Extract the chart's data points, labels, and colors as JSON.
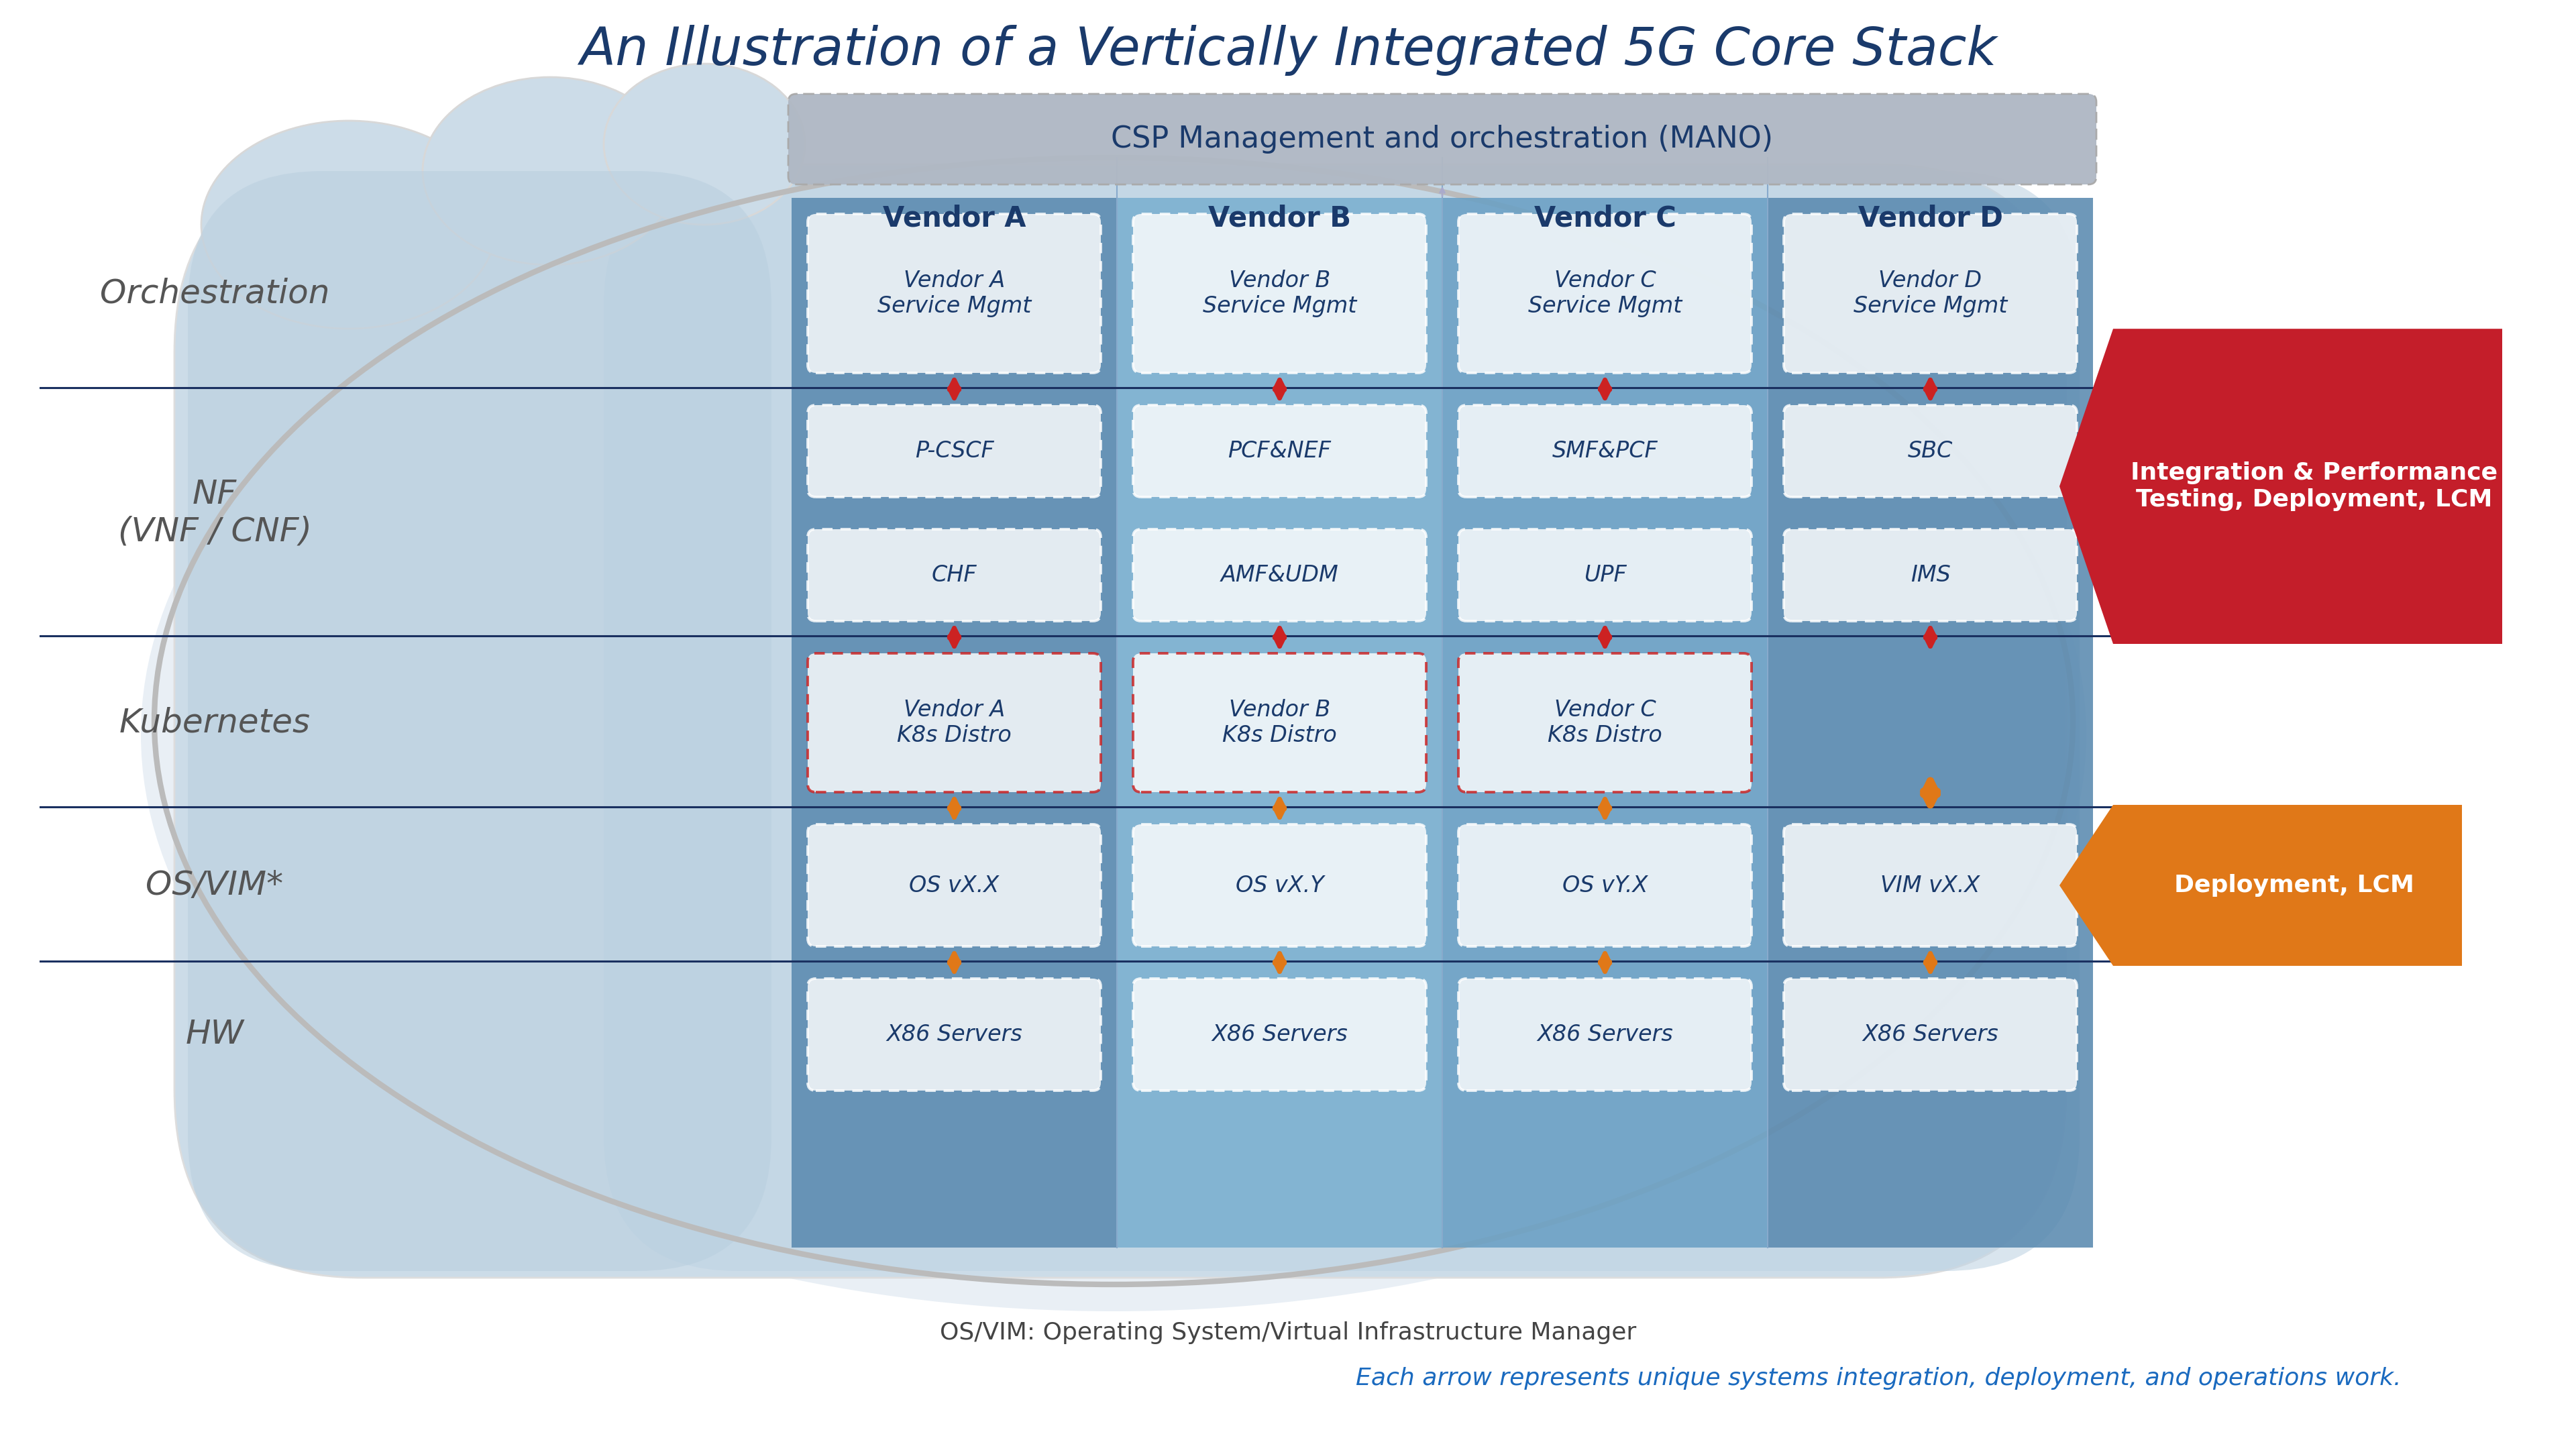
{
  "title": "An Illustration of a Vertically Integrated 5G Core Stack",
  "title_color": "#1a3a6b",
  "title_fontsize": 56,
  "background_color": "#ffffff",
  "mano_color": "#b0b8c4",
  "mano_edge_color": "#aaaaaa",
  "vendor_col_colors": [
    "#5a8ab0",
    "#7ab0d0",
    "#6aa0c4",
    "#5a8ab0"
  ],
  "vendor_names": [
    "Vendor A",
    "Vendor B",
    "Vendor C",
    "Vendor D"
  ],
  "row_label_fontsize": 36,
  "row_label_color": "#555555",
  "vendor_label_color": "#1a3a6b",
  "vendor_label_fontsize": 30,
  "cell_text_color": "#1a3a6b",
  "cell_text_fontsize": 24,
  "cells": {
    "Vendor A": {
      "orchestration": "Vendor A\nService Mgmt",
      "nf1": "P-CSCF",
      "nf2": "CHF",
      "kubernetes": "Vendor A\nK8s Distro",
      "os": "OS vX.X",
      "hw": "X86 Servers"
    },
    "Vendor B": {
      "orchestration": "Vendor B\nService Mgmt",
      "nf1": "PCF&NEF",
      "nf2": "AMF&UDM",
      "kubernetes": "Vendor B\nK8s Distro",
      "os": "OS vX.Y",
      "hw": "X86 Servers"
    },
    "Vendor C": {
      "orchestration": "Vendor C\nService Mgmt",
      "nf1": "SMF&PCF",
      "nf2": "UPF",
      "kubernetes": "Vendor C\nK8s Distro",
      "os": "OS vY.X",
      "hw": "X86 Servers"
    },
    "Vendor D": {
      "orchestration": "Vendor D\nService Mgmt",
      "nf1": "SBC",
      "nf2": "IMS",
      "kubernetes": null,
      "os": "VIM vX.X",
      "hw": "X86 Servers"
    }
  },
  "footnote1": "OS/VIM: Operating System/Virtual Infrastructure Manager",
  "footnote2": "Each arrow represents unique systems integration, deployment, and operations work.",
  "footnote1_color": "#444444",
  "footnote2_color": "#1a6abf",
  "footnote_fontsize": 26,
  "sidebar_red_text": "Integration & Performance\nTesting, Deployment, LCM",
  "sidebar_orange_text": "Deployment, LCM",
  "sidebar_red_color": "#c41e2a",
  "sidebar_orange_color": "#e07818",
  "sidebar_text_color": "#ffffff",
  "sidebar_fontsize": 26,
  "red_arrow_color": "#cc2222",
  "orange_arrow_color": "#e07818",
  "cloud_outline_color": "#cccccc",
  "cloud_fill_outer": "#dde8f0",
  "cloud_fill_mid": "#c8dcea",
  "cloud_fill_inner": "#b8d0e4",
  "grid_col_sep_color": "#aaccdd"
}
